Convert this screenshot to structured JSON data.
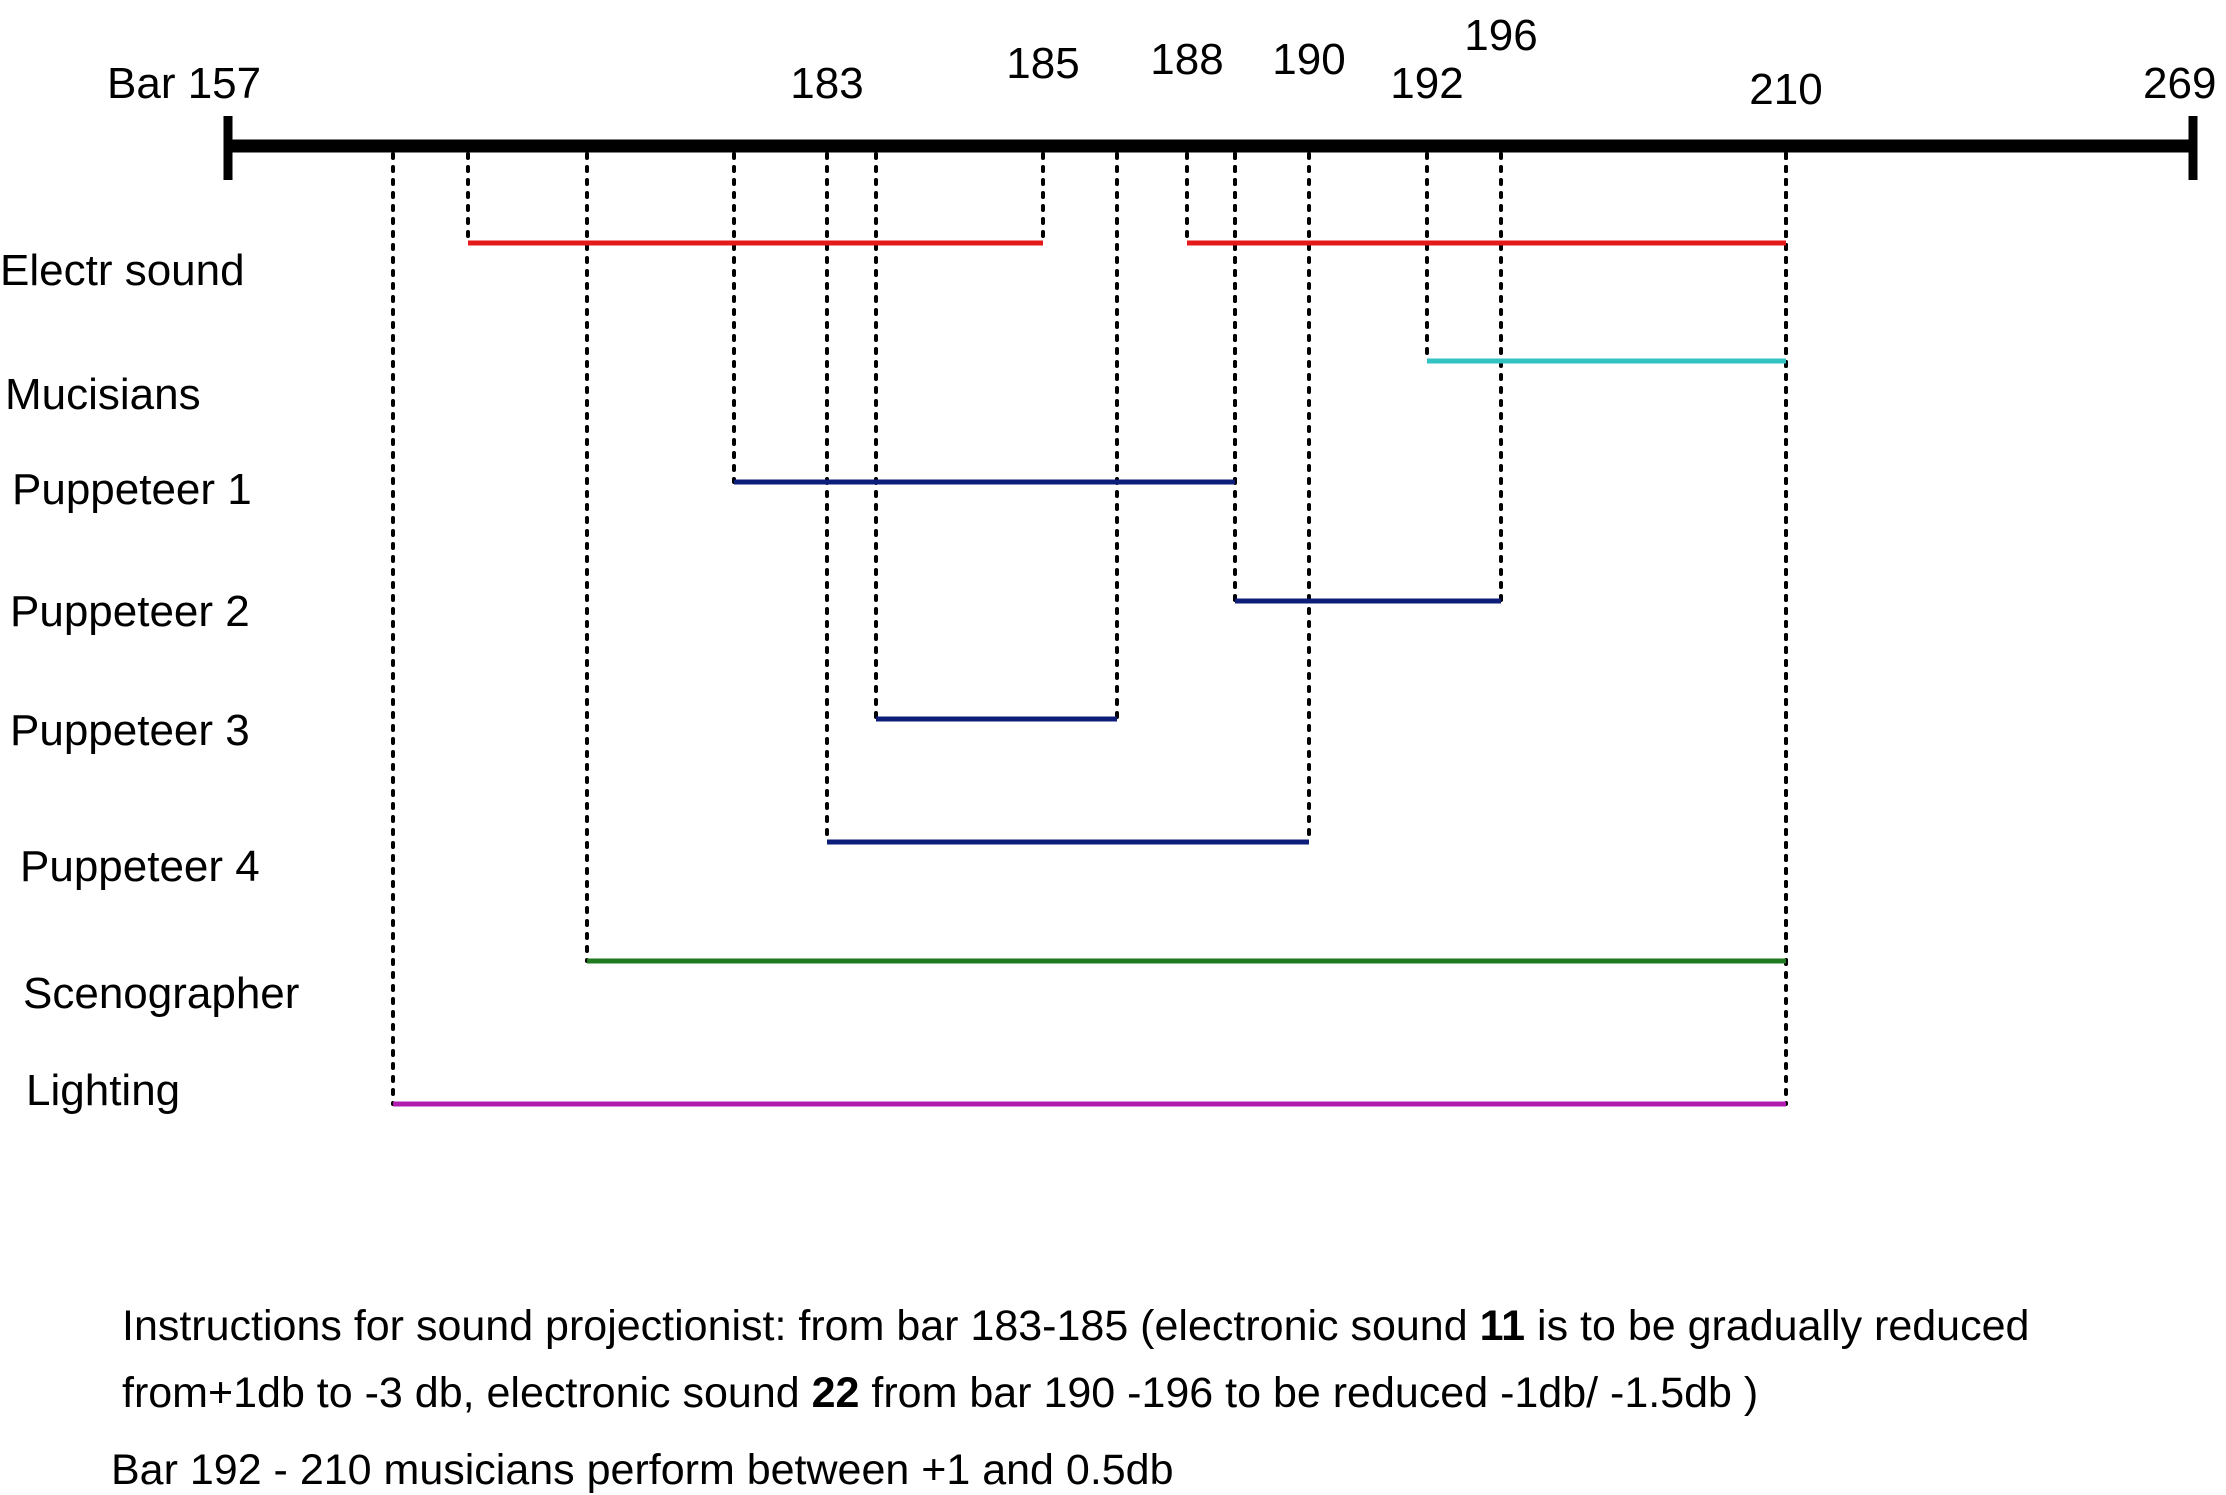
{
  "axis": {
    "start_label": "Bar 157",
    "end_label": "269",
    "range": [
      157,
      269
    ],
    "ticks": [
      {
        "bar": 183,
        "label": "183"
      },
      {
        "bar": 185,
        "label": "185"
      },
      {
        "bar": 188,
        "label": "188"
      },
      {
        "bar": 190,
        "label": "190"
      },
      {
        "bar": 192,
        "label": "192"
      },
      {
        "bar": 196,
        "label": "196"
      },
      {
        "bar": 210,
        "label": "210"
      }
    ]
  },
  "rows": [
    {
      "label": "Electr sound",
      "color": "#e41a1a",
      "segments": [
        {
          "start": 171,
          "end": 185
        },
        {
          "start": 188,
          "end": 210
        }
      ]
    },
    {
      "label": "Mucisians",
      "color": "#33c2c2",
      "segments": [
        {
          "start": 192,
          "end": 210
        }
      ]
    },
    {
      "label": "Puppeteer 1",
      "color": "#0d1d7a",
      "segments": [
        {
          "start": 178,
          "end": 188.5
        }
      ]
    },
    {
      "label": "Puppeteer 2",
      "color": "#0d1d7a",
      "segments": [
        {
          "start": 188.5,
          "end": 196
        }
      ]
    },
    {
      "label": "Puppeteer 3",
      "color": "#0d1d7a",
      "segments": [
        {
          "start": 184,
          "end": 186.5
        }
      ]
    },
    {
      "label": "Puppeteer 4",
      "color": "#0d1d7a",
      "segments": [
        {
          "start": 183,
          "end": 190
        }
      ]
    },
    {
      "label": "Scenographer",
      "color": "#1f7a1f",
      "segments": [
        {
          "start": 176,
          "end": 210
        }
      ]
    },
    {
      "label": "Lighting",
      "color": "#b01cb0",
      "segments": [
        {
          "start": 166,
          "end": 210
        }
      ]
    }
  ],
  "notes": {
    "line1_a": "Instructions for sound projectionist: from bar 183-185 (electronic sound ",
    "line1_bold": "11",
    "line1_b": " is to be gradually reduced",
    "line2_a": "from+1db to -3 db, electronic sound ",
    "line2_bold": "22",
    "line2_b": " from bar 190 -196 to be reduced  -1db/ -1.5db )",
    "line3": "Bar 192 - 210 musicians perform between +1 and 0.5db"
  }
}
